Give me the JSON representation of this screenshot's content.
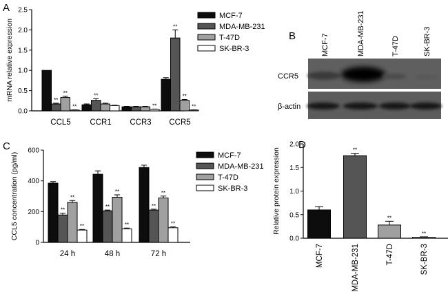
{
  "panel_labels": [
    "A",
    "B",
    "C",
    "D"
  ],
  "colors": {
    "MCF-7": "#0d0d0d",
    "MDA-MB-231": "#555555",
    "T-47D": "#a0a0a0",
    "SK-BR-3": "#ffffff"
  },
  "chart_data": [
    {
      "panel": "A",
      "type": "bar",
      "ylabel": "mRNA relative expression",
      "ylim": [
        0,
        2.5
      ],
      "yticks": [
        "0.0",
        "0.5",
        "1.0",
        "1.5",
        "2.0",
        "2.5"
      ],
      "categories": [
        "CCL5",
        "CCR1",
        "CCR3",
        "CCR5"
      ],
      "legend": "top-right",
      "series": [
        {
          "name": "MCF-7",
          "values": [
            1.0,
            0.15,
            0.1,
            0.78
          ],
          "errors": [
            0,
            0.02,
            0.01,
            0.04
          ],
          "sig": [
            "",
            "",
            "",
            ""
          ]
        },
        {
          "name": "MDA-MB-231",
          "values": [
            0.17,
            0.26,
            0.1,
            1.8
          ],
          "errors": [
            0.02,
            0.04,
            0.01,
            0.2
          ],
          "sig": [
            "**",
            "**",
            "",
            "**"
          ]
        },
        {
          "name": "T-47D",
          "values": [
            0.33,
            0.17,
            0.1,
            0.26
          ],
          "errors": [
            0.03,
            0.02,
            0.01,
            0.02
          ],
          "sig": [
            "**",
            "",
            "",
            "**"
          ]
        },
        {
          "name": "SK-BR-3",
          "values": [
            0.02,
            0.13,
            0.04,
            0.02
          ],
          "errors": [
            0.005,
            0.01,
            0.005,
            0.005
          ],
          "sig": [
            "**",
            "",
            "**",
            "**"
          ]
        }
      ]
    },
    {
      "panel": "C",
      "type": "bar",
      "ylabel": "CCL5 concentration (pg/ml)",
      "ylim": [
        0,
        600
      ],
      "yticks": [
        "0",
        "200",
        "400",
        "600"
      ],
      "categories": [
        "24 h",
        "48 h",
        "72 h"
      ],
      "legend": "top-right",
      "series": [
        {
          "name": "MCF-7",
          "values": [
            385,
            443,
            487
          ],
          "errors": [
            10,
            22,
            15
          ],
          "sig": [
            "",
            "",
            ""
          ]
        },
        {
          "name": "MDA-MB-231",
          "values": [
            178,
            205,
            210
          ],
          "errors": [
            12,
            5,
            6
          ],
          "sig": [
            "**",
            "**",
            "**"
          ]
        },
        {
          "name": "T-47D",
          "values": [
            260,
            293,
            289
          ],
          "errors": [
            12,
            16,
            12
          ],
          "sig": [
            "**",
            "**",
            "**"
          ]
        },
        {
          "name": "SK-BR-3",
          "values": [
            80,
            88,
            95
          ],
          "errors": [
            4,
            5,
            6
          ],
          "sig": [
            "**",
            "**",
            "**"
          ]
        }
      ]
    },
    {
      "panel": "D",
      "type": "bar",
      "ylabel": "Relative protein expression",
      "ylim": [
        0,
        2.0
      ],
      "yticks": [
        "0.0",
        "0.5",
        "1.0",
        "1.5",
        "2.0"
      ],
      "categories": [
        "MCF-7",
        "MDA-MB-231",
        "T-47D",
        "SK-BR-3"
      ],
      "values": [
        0.6,
        1.75,
        0.28,
        0.02
      ],
      "errors": [
        0.07,
        0.05,
        0.08,
        0.01
      ],
      "sig": [
        "",
        "**",
        "**",
        "**"
      ]
    }
  ],
  "blot": {
    "lanes": [
      "MCF-7",
      "MDA-MB-231",
      "T-47D",
      "SK-BR-3"
    ],
    "rows": [
      "CCR5",
      "β-actin"
    ]
  }
}
